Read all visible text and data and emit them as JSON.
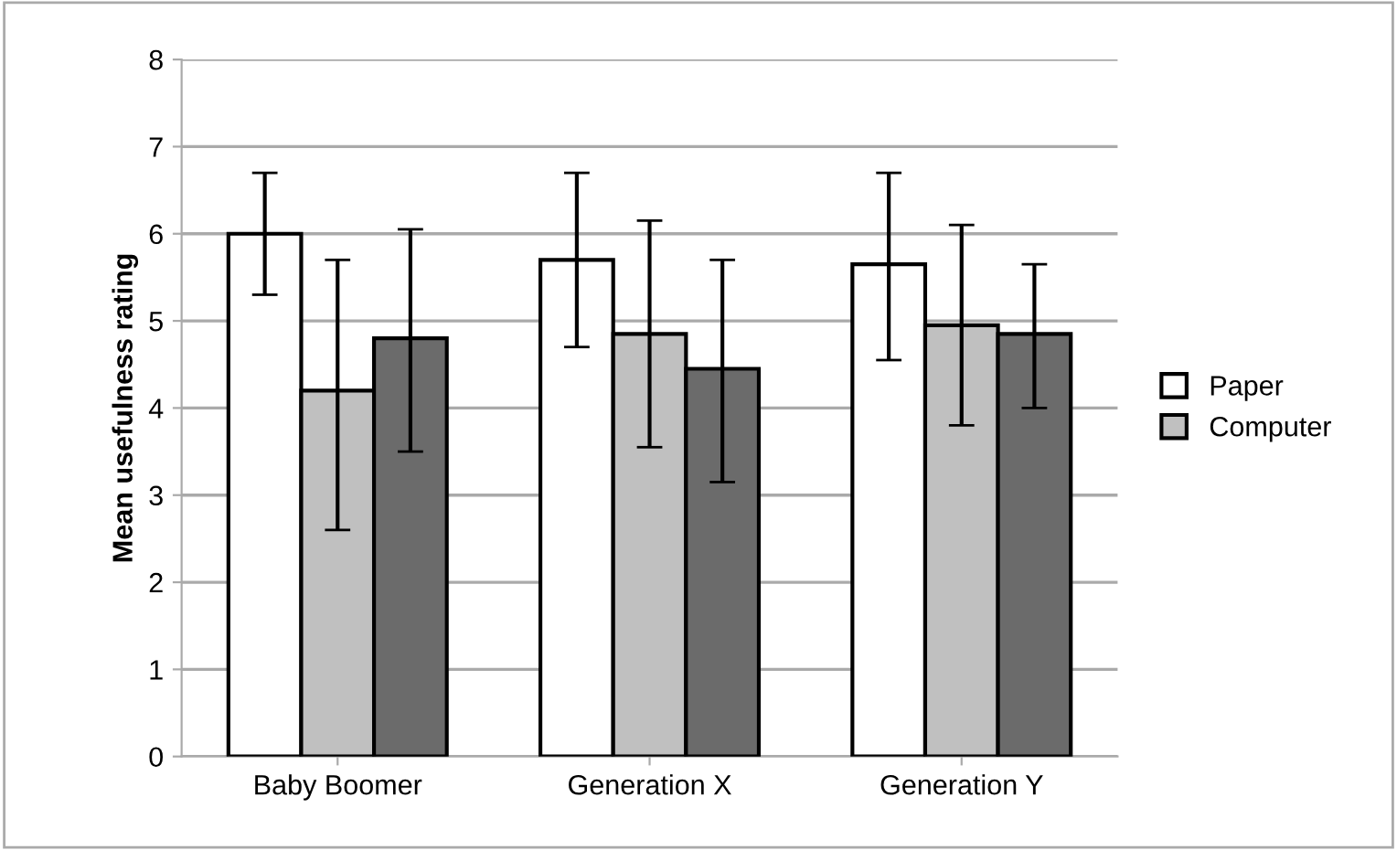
{
  "chart_data": {
    "type": "bar",
    "ylabel": "Mean usefulness rating",
    "categories": [
      "Baby Boomer",
      "Generation X",
      "Generation Y"
    ],
    "series": [
      {
        "name": "Paper",
        "color": "#ffffff",
        "values": [
          6.0,
          5.7,
          5.65
        ],
        "errors": [
          [
            5.3,
            6.7
          ],
          [
            4.7,
            6.7
          ],
          [
            4.55,
            6.7
          ]
        ]
      },
      {
        "name": "Computer",
        "color": "#c0c0c0",
        "values": [
          4.2,
          4.85,
          4.95
        ],
        "errors": [
          [
            2.6,
            5.7
          ],
          [
            3.55,
            6.15
          ],
          [
            3.8,
            6.1
          ]
        ]
      },
      {
        "color": "#6b6b6b",
        "values": [
          4.8,
          4.45,
          4.85
        ],
        "errors": [
          [
            3.5,
            6.05
          ],
          [
            3.15,
            5.7
          ],
          [
            4.0,
            5.65
          ]
        ]
      }
    ],
    "ylim": [
      0,
      8
    ],
    "yticks": [
      0,
      1,
      2,
      3,
      4,
      5,
      6,
      7,
      8
    ],
    "grid": "y",
    "legend": "right"
  }
}
